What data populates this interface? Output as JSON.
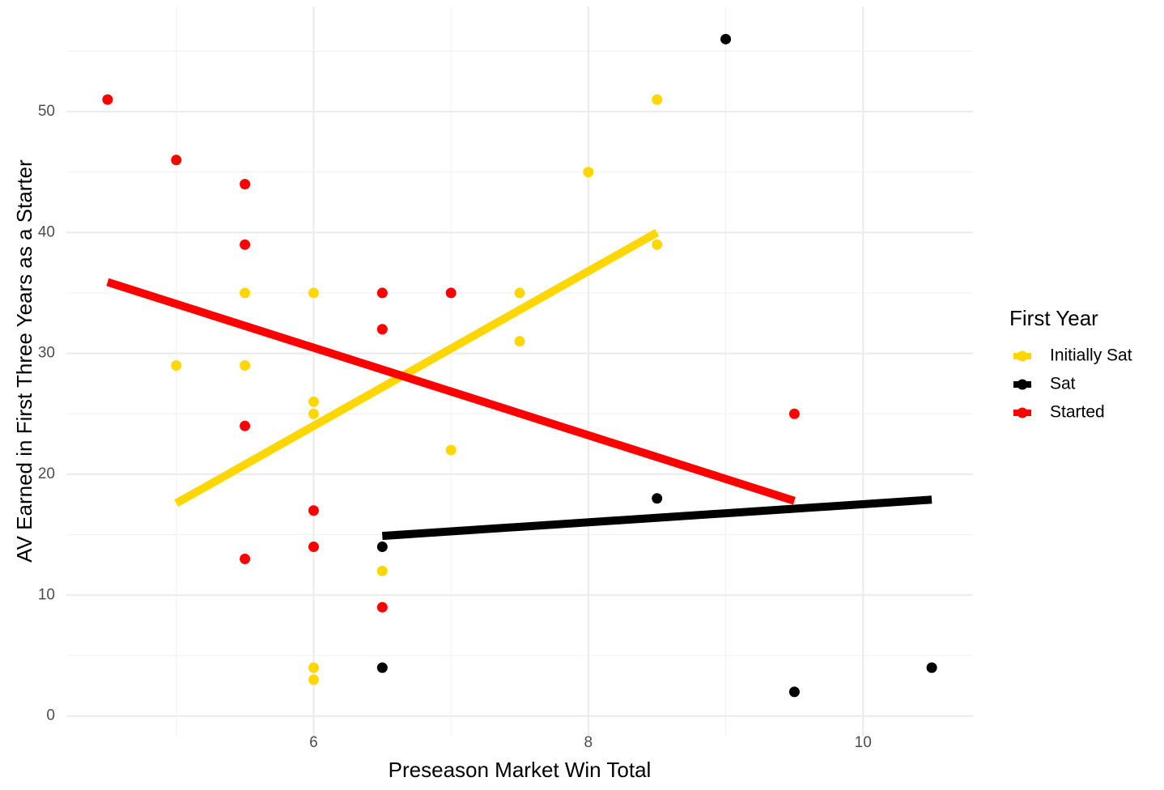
{
  "chart_data": {
    "type": "scatter",
    "x_label": "Preseason Market Win Total",
    "y_label": "AV Earned in First Three Years as a Starter",
    "xlim": [
      4.2,
      10.8
    ],
    "ylim": [
      -1.7,
      58.7
    ],
    "xticks": [
      6,
      8,
      10
    ],
    "yticks": [
      0,
      10,
      20,
      30,
      40,
      50
    ],
    "x_minor_grid": [
      5,
      7,
      9
    ],
    "y_minor_grid": [
      5,
      15,
      25,
      35,
      45,
      55
    ],
    "grid": true,
    "legend_title": "First Year",
    "legend_position": "right",
    "series": [
      {
        "name": "Initially Sat",
        "color": "#FFD700",
        "x": [
          5,
          5.5,
          5.5,
          6,
          6,
          6,
          6,
          6,
          6.5,
          7,
          7.5,
          7.5,
          8,
          8.5,
          8.5
        ],
        "values": [
          29,
          35,
          29,
          35,
          26,
          25,
          4,
          3,
          12,
          22,
          35,
          31,
          45,
          51,
          39
        ],
        "trend_x": [
          5,
          8.5
        ],
        "trend_values": [
          17.6,
          40
        ]
      },
      {
        "name": "Sat",
        "color": "#000000",
        "x": [
          6.5,
          6.5,
          8.5,
          9,
          9.5,
          10.5
        ],
        "values": [
          14,
          4,
          18,
          56,
          2,
          4
        ],
        "trend_x": [
          6.5,
          10.5
        ],
        "trend_values": [
          14.9,
          17.9
        ]
      },
      {
        "name": "Started",
        "color": "#FF0000",
        "x": [
          4.5,
          5,
          5.5,
          5.5,
          5.5,
          5.5,
          6,
          6,
          6.5,
          6.5,
          6.5,
          7,
          9.5
        ],
        "values": [
          51,
          46,
          44,
          39,
          24,
          13,
          17,
          14,
          35,
          32,
          9,
          35,
          25
        ],
        "trend_x": [
          4.5,
          9.5
        ],
        "trend_values": [
          35.9,
          17.8
        ]
      }
    ]
  }
}
